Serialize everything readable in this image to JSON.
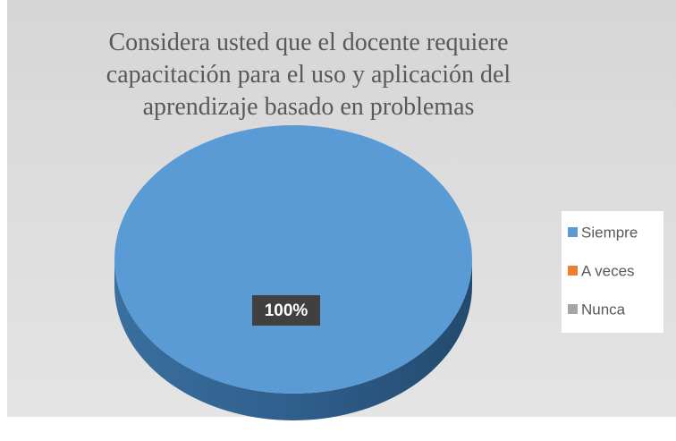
{
  "chart_data": {
    "type": "pie",
    "title": "Considera usted  que el docente requiere capacitación  para el uso y aplicación del aprendizaje basado en problemas",
    "categories": [
      "Siempre",
      "A veces",
      "Nunca"
    ],
    "values": [
      100,
      0,
      0
    ],
    "value_labels": [
      "100%",
      null,
      null
    ],
    "colors": [
      "#5b9bd5",
      "#ed7d31",
      "#a5a5a5"
    ],
    "legend": "right"
  }
}
